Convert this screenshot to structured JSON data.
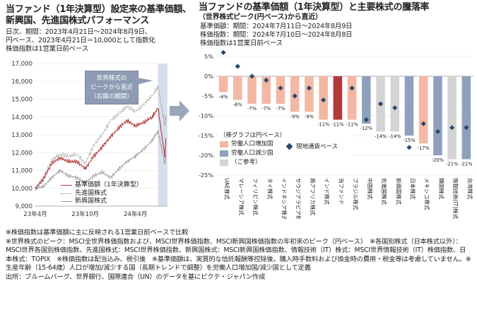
{
  "left": {
    "title_line1": "当ファンド（1年決算型）設定来の基準価額、",
    "title_line2": "新興国、先進国株式パフォーマンス",
    "sub_lines": [
      "日次、期間：2023年4月21日～2024年8月9日、",
      "円ベース、2023年4月21日＝10,000として指数化",
      "株価指数は1営業日前ベース"
    ],
    "callout_lines": [
      "世界株式の",
      "ピークから直近",
      "（右図の期間）"
    ],
    "legend": [
      "基準価額（1年決算型）",
      "先進国株式",
      "新興国株式"
    ]
  },
  "right": {
    "title_line1": "当ファンドの基準価額（1年決算型）と主要株式の騰落率",
    "title_line2": "（世界株式ピーク(円ベース)から直近）",
    "sub_lines": [
      "基準価額：期間：2024年7月11日～2024年8月9日",
      "株価指数：期間：2024年7月10日～2024年8月8日",
      "株価指数は1営業日前ベース"
    ],
    "legend_title": "（棒グラフは円ベース）",
    "legend_items": [
      "労働人口増加国",
      "労働人口減少国",
      "（ご参考）"
    ],
    "legend_local": "現地通貨ベース"
  },
  "notes": [
    "※株価指数は基準価額に主に反映される1営業日前ベースで比較",
    "※世界株式のピーク：MSCI全世界株価指数および、MSCI世界株価指数、MSCI新興国株価指数の年初来のピーク（円ベース）　※各国別株式（日本株式以外）：MSCI世界各国別株価指数、先進国株式：MSCI世界株価指数、新興国株式：MSCI新興国株価指数、情報技術（IT）株式：MSCI世界情報技術（IT）株価指数、日本株式：TOPIX　※株価指数は配当込み、税引後　※基準価額は、実質的な信託報酬等控除後。購入時手数料および換金時の費用・税金等は考慮していません。※生産年齢（15-64歳）人口が増加/減少する国（長期トレンドで調整）を労働人口増加国/減少国として定義",
    "出所：ブルームバーグ、世界銀行、国際連合（UN）のデータを基にピクテ・ジャパン作成"
  ],
  "colors": {
    "fund": "#b33a3a",
    "increase": "#f2b8a4",
    "decrease": "#8fa0bd",
    "reference": "#d4d4d4",
    "local_marker": "#2b4a6b",
    "highlight": "#d6deee",
    "arrow": "#9aa7b8"
  },
  "chart_data": [
    {
      "type": "line",
      "y_ticks": [
        9000,
        10000,
        11000,
        12000,
        13000,
        14000,
        15000,
        16000,
        17000
      ],
      "ylim": [
        9000,
        17000
      ],
      "x_ticks": [
        "23年4月",
        "23年10月",
        "24年4月"
      ],
      "series": [
        {
          "name": "基準価額（1年決算型）",
          "x": [
            "2023-04-21",
            "2023-05-20",
            "2023-06-20",
            "2023-07-20",
            "2023-08-20",
            "2023-09-20",
            "2023-10-20",
            "2023-11-20",
            "2023-12-20",
            "2024-01-20",
            "2024-02-20",
            "2024-03-20",
            "2024-04-20",
            "2024-05-20",
            "2024-06-20",
            "2024-07-11",
            "2024-08-05",
            "2024-08-09"
          ],
          "values": [
            10000,
            10500,
            11400,
            11700,
            11500,
            11500,
            11100,
            11800,
            12300,
            12900,
            13400,
            13800,
            13500,
            13700,
            14000,
            14500,
            11800,
            12800
          ]
        },
        {
          "name": "先進国株式",
          "x": [
            "2023-04-21",
            "2023-05-20",
            "2023-06-20",
            "2023-07-20",
            "2023-08-20",
            "2023-09-20",
            "2023-10-20",
            "2023-11-20",
            "2023-12-20",
            "2024-01-20",
            "2024-02-20",
            "2024-03-20",
            "2024-04-20",
            "2024-05-20",
            "2024-06-20",
            "2024-07-11",
            "2024-08-05",
            "2024-08-09"
          ],
          "values": [
            10000,
            10600,
            11600,
            11900,
            11800,
            11900,
            11400,
            12400,
            13000,
            13800,
            14200,
            14600,
            14300,
            14700,
            15200,
            15700,
            13500,
            14100
          ]
        },
        {
          "name": "新興国株式",
          "x": [
            "2023-04-21",
            "2023-05-20",
            "2023-06-20",
            "2023-07-20",
            "2023-08-20",
            "2023-09-20",
            "2023-10-20",
            "2023-11-20",
            "2023-12-20",
            "2024-01-20",
            "2024-02-20",
            "2024-03-20",
            "2024-04-20",
            "2024-05-20",
            "2024-06-20",
            "2024-07-11",
            "2024-08-05",
            "2024-08-09"
          ],
          "values": [
            10000,
            10100,
            10600,
            11000,
            10700,
            10600,
            10300,
            10700,
            10900,
            10600,
            11100,
            11500,
            11800,
            12200,
            12700,
            13200,
            11400,
            11900
          ]
        }
      ]
    },
    {
      "type": "bar",
      "ylim": [
        -25,
        5
      ],
      "y_ticks": [
        5,
        0,
        -5,
        -10,
        -15,
        -20,
        -25
      ],
      "categories": [
        "UAE株式",
        "マレーシア株式",
        "フィリピン株式",
        "タイ株式",
        "インドネシア株式",
        "サウジアラビア株式",
        "南アフリカ株式",
        "インド株式",
        "当ファンド",
        "ブラジル株式",
        "中国株式",
        "先進国株式",
        "新興国株式",
        "日本株式",
        "メキシコ株式",
        "韓国株式",
        "情報技術(IT)株式",
        "台湾株式"
      ],
      "groups": [
        "increase",
        "increase",
        "increase",
        "increase",
        "increase",
        "increase",
        "increase",
        "increase",
        "fund",
        "increase",
        "decrease",
        "reference",
        "reference",
        "decrease",
        "increase",
        "decrease",
        "reference",
        "decrease"
      ],
      "values": [
        -4,
        -6,
        -7,
        -7,
        -7,
        -9,
        -9,
        -11,
        -11,
        -11,
        -12,
        -14,
        -14,
        -15,
        -17,
        -20,
        -21,
        -21
      ],
      "labels": [
        "-4%",
        "-6%",
        "-7%",
        "-7%",
        "-7%",
        "-9%",
        "-9%",
        "-11%",
        "-11%",
        "-11%",
        "-12%",
        "-14%",
        "-14%",
        "-15%",
        "-17%",
        "-20%",
        "-21%",
        "-21%"
      ],
      "local_currency": [
        6,
        2.5,
        0,
        -1,
        -3,
        -5,
        -3,
        -6,
        null,
        -3,
        -11,
        -7,
        -8,
        -18,
        -12,
        -14,
        -13,
        -13
      ]
    }
  ]
}
